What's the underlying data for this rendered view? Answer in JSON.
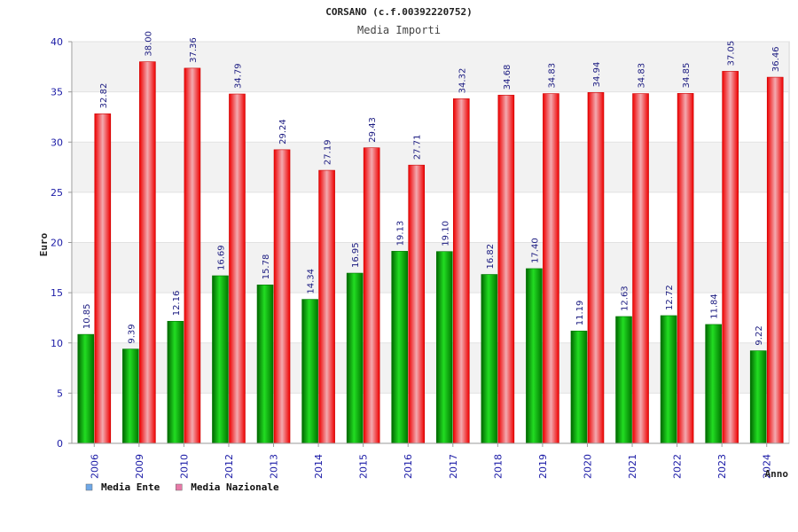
{
  "chart_data": {
    "type": "bar",
    "title": "CORSANO (c.f.00392220752)",
    "subtitle": "Media Importi",
    "ylabel": "Euro",
    "xlabel": "Anno",
    "ylim": [
      0,
      40
    ],
    "yticks": [
      0,
      5,
      10,
      15,
      20,
      25,
      30,
      35,
      40
    ],
    "grid": true,
    "legend_position": "bottom-left",
    "categories": [
      "2006",
      "2009",
      "2010",
      "2012",
      "2013",
      "2014",
      "2015",
      "2016",
      "2017",
      "2018",
      "2019",
      "2020",
      "2021",
      "2022",
      "2023",
      "2024"
    ],
    "series": [
      {
        "name": "Media Ente",
        "color": "#00aa00",
        "legend_color": "#6fa8e8",
        "values": [
          10.85,
          9.39,
          12.16,
          16.69,
          15.78,
          14.34,
          16.95,
          19.13,
          19.1,
          16.82,
          17.4,
          11.19,
          12.63,
          12.72,
          11.84,
          9.22
        ],
        "labels": [
          "10.85",
          "9.39",
          "12.16",
          "16.69",
          "15.78",
          "14.34",
          "16.95",
          "19.13",
          "19.10",
          "16.82",
          "17.40",
          "11.19",
          "12.63",
          "12.72",
          "11.84",
          "9.22"
        ]
      },
      {
        "name": "Media Nazionale",
        "color": "#ee1111",
        "legend_color": "#e87aa8",
        "values": [
          32.82,
          38.0,
          37.36,
          34.79,
          29.24,
          27.19,
          29.43,
          27.71,
          34.32,
          34.68,
          34.83,
          34.94,
          34.83,
          34.85,
          37.05,
          36.46
        ],
        "labels": [
          "32.82",
          "38.00",
          "37.36",
          "34.79",
          "29.24",
          "27.19",
          "29.43",
          "27.71",
          "34.32",
          "34.68",
          "34.83",
          "34.94",
          "34.83",
          "34.85",
          "37.05",
          "36.46"
        ]
      }
    ]
  }
}
